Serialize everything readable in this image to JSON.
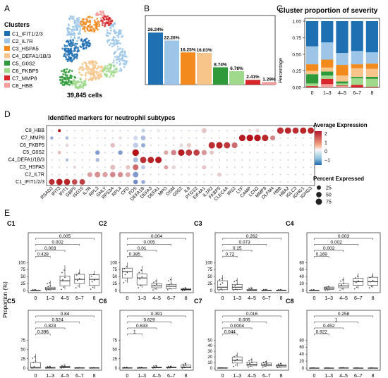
{
  "panel_labels": [
    "A",
    "B",
    "C",
    "D",
    "E"
  ],
  "colors": {
    "C1": "#1f6fb3",
    "C2": "#9cc5e8",
    "C3": "#f28a1e",
    "C4": "#f7c58a",
    "C5": "#2f9a3a",
    "C6": "#9fd98c",
    "C7": "#d7272b",
    "C8": "#f59c9c"
  },
  "panelA": {
    "legend_title": "Clusters",
    "clusters": [
      "C1_IFIT1/2/3",
      "C2_IL7R",
      "C3_HSPA5",
      "C4_DEFA1/1B/3",
      "C5_G0S2",
      "C6_FKBP5",
      "C7_MMP8",
      "C8_HBB"
    ],
    "caption": "39,845 cells"
  },
  "chart_data": [
    {
      "type": "bar",
      "panel": "B",
      "categories": [
        "C1",
        "C2",
        "C3",
        "C4",
        "C5",
        "C6",
        "C7",
        "C8"
      ],
      "values": [
        26.24,
        22.26,
        16.25,
        16.03,
        8.74,
        6.78,
        2.41,
        1.29
      ],
      "labels": [
        "26.24%",
        "22.26%",
        "16.25%",
        "16.03%",
        "8.74%",
        "6.78%",
        "2.41%",
        "1.29%"
      ]
    },
    {
      "type": "bar",
      "panel": "C",
      "stacked": true,
      "title": "Cluster proportion of severity",
      "ylabel": "Percentage",
      "ylim": [
        0,
        1
      ],
      "yticks": [
        "0.00",
        "0.25",
        "0.50",
        "0.75",
        "1.00"
      ],
      "categories": [
        "0",
        "1–3",
        "4–5",
        "6–7",
        "8"
      ],
      "series": [
        {
          "key": "C8",
          "values": [
            0.0,
            0.05,
            0.02,
            0.0,
            0.0
          ]
        },
        {
          "key": "C7",
          "values": [
            0.02,
            0.08,
            0.01,
            0.04,
            0.01
          ]
        },
        {
          "key": "C6",
          "values": [
            0.04,
            0.05,
            0.03,
            0.1,
            0.12
          ]
        },
        {
          "key": "C5",
          "values": [
            0.14,
            0.06,
            0.03,
            0.02,
            0.03
          ]
        },
        {
          "key": "C4",
          "values": [
            0.05,
            0.06,
            0.09,
            0.13,
            0.12
          ]
        },
        {
          "key": "C3",
          "values": [
            0.1,
            0.12,
            0.16,
            0.06,
            0.08
          ]
        },
        {
          "key": "C2",
          "values": [
            0.27,
            0.26,
            0.18,
            0.2,
            0.17
          ]
        },
        {
          "key": "C1",
          "values": [
            0.38,
            0.32,
            0.48,
            0.45,
            0.47
          ]
        }
      ]
    },
    {
      "type": "heatmap",
      "panel": "D",
      "title": "Identified markers for neutrophil subtypes",
      "rows": [
        "C8_HBB",
        "C7_MMP8",
        "C6_FKBP5",
        "C5_G0S2",
        "C4_DEFA1/1B/3",
        "C3_HSPA5",
        "C2_IL7R",
        "C1_IFIT1/2/3"
      ],
      "genes": [
        "RSAD2",
        "IFIT3",
        "IFIT1",
        "GBP5",
        "ISG15",
        "IL7R",
        "RPL3",
        "GNLY",
        "RPS3A",
        "RPL4",
        "CFD",
        "FOS",
        "DEFA1B",
        "DEFA3",
        "DEFA1",
        "MPO",
        "OSM",
        "G0S2",
        "IL8",
        "PTGS2",
        "EIF4A1",
        "IL1R2",
        "FKBP5",
        "CLEC4A",
        "IRS2",
        "LTF",
        "CAMP",
        "LCN2",
        "MMP8",
        "OLFM4",
        "HBB",
        "HBA2",
        "IGLC3",
        "IGHG1",
        "IGHG3"
      ],
      "legend_expression_title": "Average Expression",
      "legend_expression_ticks": [
        "2",
        "1",
        "0",
        "−1"
      ],
      "legend_percent_title": "Percent Expressed",
      "legend_percent_ticks": [
        25,
        50,
        75
      ],
      "cells": [
        [
          1,
          7,
          25,
          -0.6
        ],
        [
          12,
          15,
          -0.2
        ],
        [
          14,
          12,
          0.1
        ],
        [
          20,
          40,
          0.5
        ],
        [
          26,
          15,
          0.2
        ],
        [
          27,
          20,
          0.3
        ],
        [
          30,
          80,
          2.2
        ],
        [
          31,
          75,
          2.3
        ],
        [
          32,
          70,
          2.2
        ],
        [
          33,
          75,
          2.3
        ],
        [
          34,
          75,
          2.3
        ],
        [
          0,
          10,
          -0.4
        ],
        [
          2,
          10,
          -0.3
        ],
        [
          9,
          12,
          0.2
        ],
        [
          11,
          30,
          -0.1
        ],
        [
          12,
          35,
          -0.3
        ],
        [
          16,
          10,
          0.1
        ],
        [
          25,
          80,
          2.4
        ],
        [
          26,
          85,
          2.5
        ],
        [
          27,
          85,
          2.5
        ],
        [
          28,
          80,
          2.3
        ],
        [
          29,
          40,
          1.2
        ],
        [
          2,
          10,
          0.3
        ],
        [
          8,
          30,
          0.6
        ],
        [
          11,
          45,
          -0.2
        ],
        [
          12,
          25,
          -0.4
        ],
        [
          17,
          15,
          0.3
        ],
        [
          18,
          30,
          0.4
        ],
        [
          21,
          80,
          2.2
        ],
        [
          22,
          80,
          2.3
        ],
        [
          23,
          75,
          2.1
        ],
        [
          24,
          60,
          1.5
        ],
        [
          1,
          12,
          0.6
        ],
        [
          6,
          30,
          -0.5
        ],
        [
          9,
          30,
          -0.5
        ],
        [
          11,
          85,
          2.6
        ],
        [
          15,
          30,
          0.8
        ],
        [
          16,
          50,
          1.2
        ],
        [
          17,
          80,
          2.4
        ],
        [
          18,
          75,
          2.1
        ],
        [
          19,
          70,
          2.0
        ],
        [
          20,
          45,
          1.0
        ],
        [
          21,
          20,
          0.5
        ],
        [
          2,
          8,
          -0.3
        ],
        [
          6,
          20,
          -0.3
        ],
        [
          11,
          40,
          -0.3
        ],
        [
          12,
          75,
          2.2
        ],
        [
          13,
          75,
          2.3
        ],
        [
          14,
          80,
          2.4
        ],
        [
          15,
          25,
          0.9
        ],
        [
          0,
          8,
          0.0
        ],
        [
          3,
          10,
          0.3
        ],
        [
          8,
          40,
          0.6
        ],
        [
          10,
          30,
          0.5
        ],
        [
          11,
          60,
          1.5
        ],
        [
          12,
          25,
          -0.2
        ],
        [
          16,
          25,
          0.3
        ],
        [
          20,
          25,
          0.5
        ],
        [
          22,
          25,
          0.4
        ],
        [
          5,
          40,
          0.9
        ],
        [
          6,
          55,
          1.1
        ],
        [
          7,
          45,
          0.9
        ],
        [
          8,
          50,
          1.2
        ],
        [
          9,
          45,
          1.1
        ],
        [
          10,
          40,
          0.8
        ],
        [
          11,
          55,
          -0.5
        ],
        [
          12,
          20,
          -0.4
        ],
        [
          0,
          60,
          2.2
        ],
        [
          1,
          75,
          2.4
        ],
        [
          2,
          70,
          2.3
        ],
        [
          3,
          50,
          1.9
        ],
        [
          4,
          55,
          2.0
        ],
        [
          11,
          30,
          -0.6
        ]
      ]
    },
    {
      "type": "box",
      "panel": "E",
      "ylabel": "Proportion (%)",
      "categories": [
        "0",
        "1–3",
        "4–5",
        "6–7",
        "8"
      ],
      "panels": [
        {
          "name": "C1",
          "ylim": [
            0,
            100
          ],
          "yticks": [
            0,
            25,
            50,
            75,
            100
          ],
          "boxes": [
            [
              0,
              0,
              0.5,
              1,
              4
            ],
            [
              0,
              3,
              6,
              12,
              35
            ],
            [
              4,
              17,
              35,
              52,
              90
            ],
            [
              10,
              25,
              40,
              58,
              75
            ],
            [
              5,
              18,
              40,
              57,
              70
            ]
          ],
          "brackets": [
            {
              "from": 0,
              "to": 1,
              "label": "0.428"
            },
            {
              "from": 0,
              "to": 2,
              "label": "0.003"
            },
            {
              "from": 0,
              "to": 3,
              "label": "0.002"
            },
            {
              "from": 0,
              "to": 4,
              "label": "0.005"
            }
          ]
        },
        {
          "name": "C2",
          "ylim": [
            0,
            100
          ],
          "yticks": [
            0,
            25,
            50,
            75,
            100
          ],
          "boxes": [
            [
              28,
              45,
              68,
              80,
              100
            ],
            [
              10,
              20,
              45,
              60,
              88
            ],
            [
              2,
              10,
              17,
              25,
              42
            ],
            [
              3,
              7,
              15,
              22,
              48
            ],
            [
              0,
              2,
              4,
              7,
              12
            ]
          ],
          "brackets": [
            {
              "from": 0,
              "to": 1,
              "label": "0.385"
            },
            {
              "from": 0,
              "to": 2,
              "label": "0.01"
            },
            {
              "from": 0,
              "to": 3,
              "label": "0.005"
            },
            {
              "from": 0,
              "to": 4,
              "label": "0.004"
            }
          ]
        },
        {
          "name": "C3",
          "ylim": [
            0,
            100
          ],
          "yticks": [
            0,
            25,
            50,
            75,
            100
          ],
          "boxes": [
            [
              0,
              3,
              12,
              35,
              55
            ],
            [
              0,
              4,
              12,
              22,
              45
            ],
            [
              0,
              0,
              1,
              4,
              12
            ],
            [
              0,
              0,
              1,
              2,
              5
            ],
            [
              0,
              0,
              1,
              2,
              4
            ]
          ],
          "brackets": [
            {
              "from": 0,
              "to": 1,
              "label": "0.72"
            },
            {
              "from": 0,
              "to": 2,
              "label": "0.15"
            },
            {
              "from": 0,
              "to": 3,
              "label": "0.073"
            },
            {
              "from": 0,
              "to": 4,
              "label": "0.262"
            }
          ]
        },
        {
          "name": "C4",
          "ylim": [
            0,
            80
          ],
          "yticks": [
            0,
            20,
            40,
            60,
            80
          ],
          "boxes": [
            [
              0,
              0,
              0.5,
              1,
              3
            ],
            [
              0,
              3,
              7,
              10,
              14
            ],
            [
              1,
              8,
              13,
              20,
              38
            ],
            [
              5,
              15,
              25,
              35,
              50
            ],
            [
              8,
              15,
              25,
              38,
              50
            ]
          ],
          "brackets": [
            {
              "from": 0,
              "to": 1,
              "label": "0.169"
            },
            {
              "from": 0,
              "to": 2,
              "label": "0.002"
            },
            {
              "from": 0,
              "to": 3,
              "label": "0.002"
            },
            {
              "from": 0,
              "to": 4,
              "label": "0.003"
            }
          ]
        },
        {
          "name": "C5",
          "ylim": [
            0,
            75
          ],
          "yticks": [
            0,
            25,
            50,
            75
          ],
          "boxes": [
            [
              0,
              0,
              2,
              15,
              38
            ],
            [
              0,
              0,
              0.5,
              2,
              6
            ],
            [
              0,
              1,
              3,
              5,
              10
            ],
            [
              0,
              0,
              0.5,
              1,
              2
            ],
            [
              0,
              0,
              0.5,
              1,
              2
            ]
          ],
          "brackets": [
            {
              "from": 0,
              "to": 1,
              "label": "0.396"
            },
            {
              "from": 0,
              "to": 2,
              "label": "0.823"
            },
            {
              "from": 0,
              "to": 3,
              "label": "0.524"
            },
            {
              "from": 0,
              "to": 4,
              "label": "0.84"
            }
          ]
        },
        {
          "name": "C6",
          "ylim": [
            0,
            75
          ],
          "yticks": [
            0,
            25,
            50,
            75
          ],
          "boxes": [
            [
              0,
              0,
              0.5,
              1,
              3
            ],
            [
              0,
              0,
              0.5,
              1,
              3
            ],
            [
              0,
              0.5,
              1,
              3,
              8
            ],
            [
              0,
              1,
              2,
              3,
              6
            ],
            [
              0,
              1,
              3,
              8,
              15
            ]
          ],
          "brackets": [
            {
              "from": 0,
              "to": 1,
              "label": "1"
            },
            {
              "from": 0,
              "to": 2,
              "label": "0.633"
            },
            {
              "from": 0,
              "to": 3,
              "label": "0.629"
            },
            {
              "from": 0,
              "to": 4,
              "label": "0.391"
            }
          ]
        },
        {
          "name": "C7",
          "ylim": [
            0,
            50
          ],
          "yticks": [
            0,
            10,
            20,
            30,
            40,
            50
          ],
          "boxes": [
            [
              0,
              0,
              0.2,
              0.5,
              1
            ],
            [
              3,
              9,
              14,
              20,
              28
            ],
            [
              2,
              4,
              7,
              11,
              18
            ],
            [
              2,
              4,
              6,
              9,
              14
            ],
            [
              1,
              2,
              4,
              6,
              10
            ]
          ],
          "brackets": [
            {
              "from": 0,
              "to": 1,
              "label": "0.044"
            },
            {
              "from": 0,
              "to": 2,
              "label": "0.0004"
            },
            {
              "from": 0,
              "to": 3,
              "label": "0.005"
            },
            {
              "from": 0,
              "to": 4,
              "label": "0.016"
            }
          ]
        },
        {
          "name": "C8",
          "ylim": [
            0,
            80
          ],
          "yticks": [
            0,
            20,
            40,
            60,
            80
          ],
          "boxes": [
            [
              0,
              0,
              0.2,
              0.5,
              1
            ],
            [
              0,
              0,
              0.2,
              0.5,
              1
            ],
            [
              0,
              0,
              0.3,
              0.8,
              2
            ],
            [
              0,
              0,
              0.2,
              0.5,
              1
            ],
            [
              0,
              0,
              0.2,
              0.5,
              1
            ]
          ],
          "brackets": [
            {
              "from": 0,
              "to": 1,
              "label": "0.922"
            },
            {
              "from": 0,
              "to": 2,
              "label": "0.452"
            },
            {
              "from": 0,
              "to": 3,
              "label": "1"
            },
            {
              "from": 0,
              "to": 4,
              "label": "0.258"
            }
          ]
        }
      ]
    }
  ]
}
